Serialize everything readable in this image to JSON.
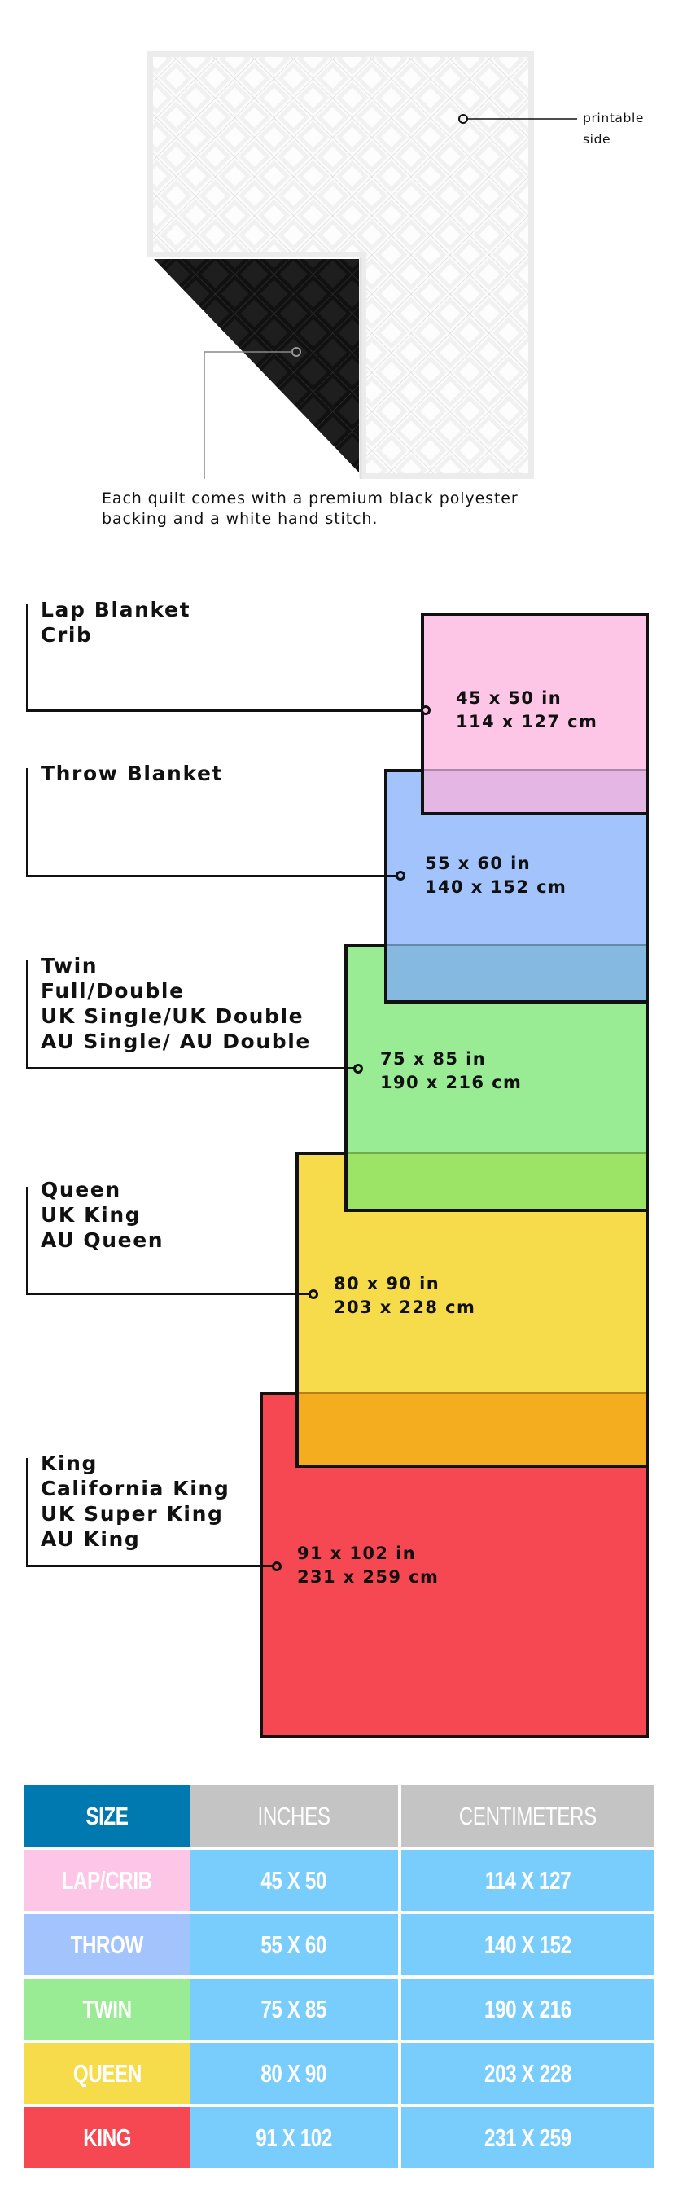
{
  "quilt": {
    "printable_label": [
      "printable",
      "side"
    ],
    "caption": [
      "Each quilt comes with a premium black polyester",
      "backing and a white hand stitch."
    ]
  },
  "sizes": [
    {
      "label": "Lap Blanket\nCrib",
      "dims": "45 x 50 in\n114 x 127 cm",
      "color": "#fdc6e6"
    },
    {
      "label": "Throw Blanket",
      "dims": "55 x 60 in\n140 x 152 cm",
      "color": "#a3c3fd"
    },
    {
      "label": "Twin\nFull/Double\nUK Single/UK Double\nAU Single/ AU Double",
      "dims": "75 x 85 in\n190 x 216 cm",
      "color": "#99ec93"
    },
    {
      "label": "Queen\nUK King\nAU Queen",
      "dims": "80 x 90 in\n203 x 228 cm",
      "color": "#f6dc4a"
    },
    {
      "label": "King\nCalifornia King\nUK Super King\nAU King",
      "dims": "91 x 102 in\n231 x 259 cm",
      "color": "#f64852"
    }
  ],
  "table": {
    "headers": [
      "SIZE",
      "INCHES",
      "CENTIMETERS"
    ],
    "header_colors": {
      "size": "#0079b0",
      "other": "#c4c4c4"
    },
    "value_color": "#79cdfd",
    "rows": [
      {
        "size": "LAP/CRIB",
        "inches": "45 X 50",
        "cm": "114 X 127",
        "color": "#fdc6e6"
      },
      {
        "size": "THROW",
        "inches": "55 X 60",
        "cm": "140 X 152",
        "color": "#a3c3fd"
      },
      {
        "size": "TWIN",
        "inches": "75 X 85",
        "cm": "190 X 216",
        "color": "#99ec93"
      },
      {
        "size": "QUEEN",
        "inches": "80 X 90",
        "cm": "203 X 228",
        "color": "#f6dc4a"
      },
      {
        "size": "KING",
        "inches": "91 X 102",
        "cm": "231 X 259",
        "color": "#f64852"
      }
    ]
  }
}
